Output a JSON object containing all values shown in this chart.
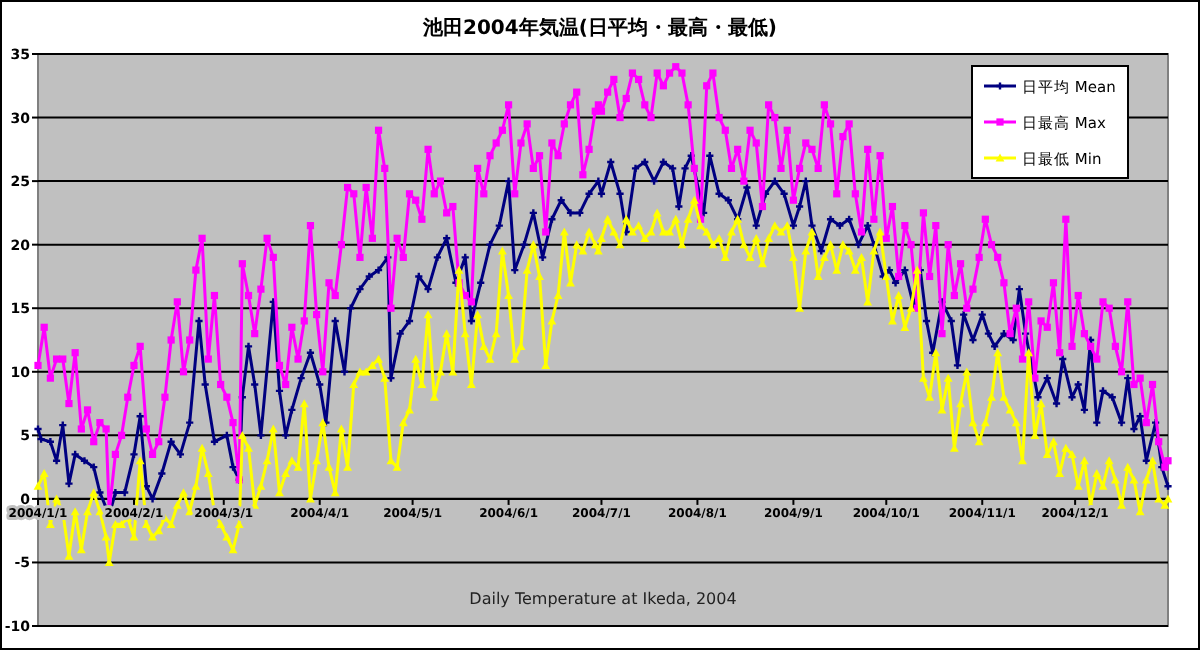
{
  "chart_data": {
    "type": "line",
    "title": "池田2004年気温(日平均・最高・最低)",
    "annotations": [
      "Daily Temperature at Ikeda, 2004"
    ],
    "xlim": [
      "2004-01-01",
      "2004-12-31"
    ],
    "xticks": [
      {
        "value": "2004-01-01",
        "label": "2004/1/1"
      },
      {
        "value": "2004-02-01",
        "label": "2004/2/1"
      },
      {
        "value": "2004-03-01",
        "label": "2004/3/1"
      },
      {
        "value": "2004-04-01",
        "label": "2004/4/1"
      },
      {
        "value": "2004-05-01",
        "label": "2004/5/1"
      },
      {
        "value": "2004-06-01",
        "label": "2004/6/1"
      },
      {
        "value": "2004-07-01",
        "label": "2004/7/1"
      },
      {
        "value": "2004-08-01",
        "label": "2004/8/1"
      },
      {
        "value": "2004-09-01",
        "label": "2004/9/1"
      },
      {
        "value": "2004-10-01",
        "label": "2004/10/1"
      },
      {
        "value": "2004-11-01",
        "label": "2004/11/1"
      },
      {
        "value": "2004-12-01",
        "label": "2004/12/1"
      }
    ],
    "ylim": [
      -10,
      35
    ],
    "yticks": [
      -10,
      -5,
      0,
      5,
      10,
      15,
      20,
      25,
      30,
      35
    ],
    "grid": "y",
    "legend": "top right",
    "line_style": "solid",
    "x": [
      "2004-01-01",
      "2004-01-03",
      "2004-01-05",
      "2004-01-07",
      "2004-01-09",
      "2004-01-11",
      "2004-01-13",
      "2004-01-15",
      "2004-01-17",
      "2004-01-19",
      "2004-01-21",
      "2004-01-23",
      "2004-01-24",
      "2004-01-26",
      "2004-01-28",
      "2004-01-30",
      "2004-02-01",
      "2004-02-03",
      "2004-02-05",
      "2004-02-07",
      "2004-02-09",
      "2004-02-11",
      "2004-02-13",
      "2004-02-15",
      "2004-02-17",
      "2004-02-19",
      "2004-02-21",
      "2004-02-23",
      "2004-02-25",
      "2004-02-27",
      "2004-02-29",
      "2004-03-02",
      "2004-03-04",
      "2004-03-06",
      "2004-03-07",
      "2004-03-09",
      "2004-03-11",
      "2004-03-13",
      "2004-03-15",
      "2004-03-17",
      "2004-03-19",
      "2004-03-21",
      "2004-03-23",
      "2004-03-25",
      "2004-03-27",
      "2004-03-29",
      "2004-03-31",
      "2004-04-02",
      "2004-04-04",
      "2004-04-06",
      "2004-04-08",
      "2004-04-10",
      "2004-04-12",
      "2004-04-14",
      "2004-04-16",
      "2004-04-18",
      "2004-04-20",
      "2004-04-22",
      "2004-04-24",
      "2004-04-26",
      "2004-04-28",
      "2004-04-30",
      "2004-05-02",
      "2004-05-04",
      "2004-05-06",
      "2004-05-08",
      "2004-05-10",
      "2004-05-12",
      "2004-05-14",
      "2004-05-16",
      "2004-05-18",
      "2004-05-20",
      "2004-05-22",
      "2004-05-24",
      "2004-05-26",
      "2004-05-28",
      "2004-05-30",
      "2004-06-01",
      "2004-06-03",
      "2004-06-05",
      "2004-06-07",
      "2004-06-09",
      "2004-06-11",
      "2004-06-13",
      "2004-06-15",
      "2004-06-17",
      "2004-06-19",
      "2004-06-21",
      "2004-06-23",
      "2004-06-25",
      "2004-06-27",
      "2004-06-29",
      "2004-06-30",
      "2004-07-01",
      "2004-07-03",
      "2004-07-05",
      "2004-07-07",
      "2004-07-09",
      "2004-07-11",
      "2004-07-13",
      "2004-07-15",
      "2004-07-17",
      "2004-07-19",
      "2004-07-21",
      "2004-07-23",
      "2004-07-25",
      "2004-07-27",
      "2004-07-29",
      "2004-07-31",
      "2004-08-02",
      "2004-08-04",
      "2004-08-06",
      "2004-08-08",
      "2004-08-10",
      "2004-08-12",
      "2004-08-14",
      "2004-08-16",
      "2004-08-18",
      "2004-08-20",
      "2004-08-22",
      "2004-08-24",
      "2004-08-26",
      "2004-08-28",
      "2004-08-30",
      "2004-09-01",
      "2004-09-03",
      "2004-09-05",
      "2004-09-07",
      "2004-09-09",
      "2004-09-11",
      "2004-09-13",
      "2004-09-15",
      "2004-09-17",
      "2004-09-19",
      "2004-09-21",
      "2004-09-23",
      "2004-09-25",
      "2004-09-27",
      "2004-09-29",
      "2004-10-01",
      "2004-10-03",
      "2004-10-05",
      "2004-10-07",
      "2004-10-09",
      "2004-10-11",
      "2004-10-13",
      "2004-10-15",
      "2004-10-17",
      "2004-10-19",
      "2004-10-21",
      "2004-10-23",
      "2004-10-25",
      "2004-10-27",
      "2004-10-29",
      "2004-10-31",
      "2004-11-02",
      "2004-11-04",
      "2004-11-06",
      "2004-11-08",
      "2004-11-10",
      "2004-11-12",
      "2004-11-14",
      "2004-11-16",
      "2004-11-18",
      "2004-11-20",
      "2004-11-22",
      "2004-11-24",
      "2004-11-26",
      "2004-11-28",
      "2004-11-30",
      "2004-12-02",
      "2004-12-04",
      "2004-12-06",
      "2004-12-08",
      "2004-12-10",
      "2004-12-12",
      "2004-12-14",
      "2004-12-16",
      "2004-12-18",
      "2004-12-20",
      "2004-12-22",
      "2004-12-24",
      "2004-12-26",
      "2004-12-28",
      "2004-12-30",
      "2004-12-31"
    ],
    "series": [
      {
        "name": "日平均 Mean",
        "color": "#000080",
        "marker": "cross",
        "x": [
          "2004-01-01",
          "2004-01-02",
          "2004-01-05",
          "2004-01-07",
          "2004-01-09",
          "2004-01-11",
          "2004-01-13",
          "2004-01-16",
          "2004-01-19",
          "2004-01-21",
          "2004-01-24",
          "2004-01-26",
          "2004-01-29",
          "2004-02-01",
          "2004-02-03",
          "2004-02-05",
          "2004-02-07",
          "2004-02-10",
          "2004-02-13",
          "2004-02-16",
          "2004-02-19",
          "2004-02-22",
          "2004-02-24",
          "2004-02-27",
          "2004-03-02",
          "2004-03-04",
          "2004-03-06",
          "2004-03-07",
          "2004-03-09",
          "2004-03-11",
          "2004-03-13",
          "2004-03-17",
          "2004-03-19",
          "2004-03-21",
          "2004-03-23",
          "2004-03-26",
          "2004-03-29",
          "2004-04-01",
          "2004-04-03",
          "2004-04-06",
          "2004-04-09",
          "2004-04-11",
          "2004-04-14",
          "2004-04-17",
          "2004-04-20",
          "2004-04-23",
          "2004-04-24",
          "2004-04-27",
          "2004-04-30",
          "2004-05-03",
          "2004-05-06",
          "2004-05-09",
          "2004-05-12",
          "2004-05-15",
          "2004-05-18",
          "2004-05-20",
          "2004-05-23",
          "2004-05-26",
          "2004-05-29",
          "2004-06-01",
          "2004-06-03",
          "2004-06-06",
          "2004-06-09",
          "2004-06-12",
          "2004-06-15",
          "2004-06-18",
          "2004-06-21",
          "2004-06-24",
          "2004-06-27",
          "2004-06-30",
          "2004-07-01",
          "2004-07-04",
          "2004-07-07",
          "2004-07-09",
          "2004-07-12",
          "2004-07-15",
          "2004-07-18",
          "2004-07-21",
          "2004-07-24",
          "2004-07-26",
          "2004-07-28",
          "2004-07-30",
          "2004-08-03",
          "2004-08-05",
          "2004-08-08",
          "2004-08-11",
          "2004-08-14",
          "2004-08-17",
          "2004-08-20",
          "2004-08-23",
          "2004-08-26",
          "2004-08-29",
          "2004-09-01",
          "2004-09-03",
          "2004-09-05",
          "2004-09-07",
          "2004-09-10",
          "2004-09-13",
          "2004-09-16",
          "2004-09-19",
          "2004-09-22",
          "2004-09-25",
          "2004-09-27",
          "2004-09-30",
          "2004-10-02",
          "2004-10-04",
          "2004-10-07",
          "2004-10-10",
          "2004-10-12",
          "2004-10-14",
          "2004-10-16",
          "2004-10-19",
          "2004-10-22",
          "2004-10-24",
          "2004-10-26",
          "2004-10-29",
          "2004-11-01",
          "2004-11-03",
          "2004-11-05",
          "2004-11-08",
          "2004-11-11",
          "2004-11-13",
          "2004-11-15",
          "2004-11-17",
          "2004-11-19",
          "2004-11-22",
          "2004-11-25",
          "2004-11-27",
          "2004-11-30",
          "2004-12-02",
          "2004-12-04",
          "2004-12-06",
          "2004-12-08",
          "2004-12-10",
          "2004-12-13",
          "2004-12-16",
          "2004-12-18",
          "2004-12-20",
          "2004-12-22",
          "2004-12-24",
          "2004-12-27",
          "2004-12-29",
          "2004-12-31"
        ],
        "values": [
          5.5,
          4.7,
          4.5,
          3,
          5.8,
          1.2,
          3.5,
          3,
          2.5,
          0.5,
          -1.3,
          0.5,
          0.5,
          3.5,
          6.5,
          1,
          0,
          2,
          4.5,
          3.5,
          6,
          14,
          9,
          4.5,
          5,
          2.5,
          1.5,
          8,
          12,
          9,
          5,
          15.5,
          8.5,
          5,
          7,
          9.5,
          11.5,
          9,
          6,
          14,
          10,
          15,
          16.5,
          17.5,
          18,
          19,
          9.5,
          13,
          14,
          17.5,
          16.5,
          19,
          20.5,
          17,
          19,
          14,
          17,
          20,
          21.5,
          25,
          18,
          20,
          22.5,
          19,
          22,
          23.5,
          22.5,
          22.5,
          24,
          25,
          24,
          26.5,
          24,
          21,
          26,
          26.5,
          25,
          26.5,
          26,
          23,
          26,
          27,
          22.5,
          27,
          24,
          23.5,
          22,
          24.5,
          21.5,
          24,
          25,
          24,
          21.5,
          23,
          25,
          21.5,
          19.5,
          22,
          21.5,
          22,
          20,
          21.5,
          20,
          17.5,
          18,
          17,
          18,
          15,
          18,
          14,
          11.5,
          15.5,
          14,
          10.5,
          14.5,
          12.5,
          14.5,
          13,
          12,
          13,
          12.5,
          16.5,
          13,
          10.5,
          8,
          9.5,
          7.5,
          11,
          8,
          9,
          7,
          12.5,
          6,
          8.5,
          8,
          6,
          9.5,
          5.5,
          6.5,
          3,
          6,
          2.5,
          1
        ]
      },
      {
        "name": "日最高 Max",
        "color": "#ff00ff",
        "marker": "square",
        "values": [
          10.5,
          13.5,
          9.5,
          11,
          11,
          7.5,
          11.5,
          5.5,
          7,
          4.5,
          6,
          5.5,
          -1,
          3.5,
          5,
          8,
          10.5,
          12,
          5.5,
          3.5,
          4.5,
          8,
          12.5,
          15.5,
          10,
          12.5,
          18,
          20.5,
          11,
          16,
          9,
          8,
          6,
          1.5,
          18.5,
          16,
          13,
          16.5,
          20.5,
          19,
          10.5,
          9,
          13.5,
          11,
          14,
          21.5,
          14.5,
          10,
          17,
          16,
          20,
          24.5,
          24,
          19,
          24.5,
          20.5,
          29,
          26,
          15,
          20.5,
          19,
          24,
          23.5,
          22,
          27.5,
          24,
          25,
          22.5,
          23,
          17,
          16,
          15.5,
          26,
          24,
          27,
          28,
          29,
          31,
          24,
          28,
          29.5,
          26,
          27,
          21,
          28,
          27,
          29.5,
          31,
          32,
          25.5,
          27.5,
          30.5,
          31,
          30.5,
          32,
          33,
          30,
          31.5,
          33.5,
          33,
          31,
          30,
          33.5,
          32.5,
          33.5,
          34,
          33.5,
          31,
          26,
          22,
          32.5,
          33.5,
          30,
          29,
          26,
          27.5,
          25,
          29,
          28,
          23,
          31,
          30,
          26,
          29,
          23.5,
          26,
          28,
          27.5,
          26,
          31,
          29.5,
          24,
          28.5,
          29.5,
          24,
          21,
          27.5,
          22,
          27,
          20.5,
          23,
          17.5,
          21.5,
          20,
          15,
          22.5,
          17.5,
          21.5,
          13,
          20,
          16,
          18.5,
          15,
          16.5,
          19,
          22,
          20,
          19,
          17,
          13,
          15,
          11,
          15.5,
          9.5,
          14,
          13.5,
          17,
          11.5,
          22,
          12,
          16,
          13,
          12,
          11,
          15.5,
          15,
          12,
          10,
          15.5,
          9,
          9.5,
          6,
          9,
          4.5,
          2.5,
          3
        ]
      },
      {
        "name": "日最低 Min",
        "color": "#ffff00",
        "marker": "triangle",
        "values": [
          1,
          2,
          -2,
          0,
          -1,
          -4.5,
          -1,
          -4,
          -1,
          0.5,
          -1,
          -3,
          -5,
          -2,
          -2,
          -1.5,
          -3,
          3,
          -2,
          -3,
          -2.5,
          -1.5,
          -2,
          -0.5,
          0.5,
          -1,
          1,
          4,
          2,
          -1,
          -2,
          -3,
          -4,
          -2,
          5,
          4,
          -0.5,
          1,
          3,
          5.5,
          0.5,
          2,
          3,
          2.5,
          7.5,
          0,
          3,
          6,
          2.5,
          0.5,
          5.5,
          2.5,
          9,
          10,
          10,
          10.5,
          11,
          9.5,
          3,
          2.5,
          6,
          7,
          11,
          9,
          14.5,
          8,
          10,
          13,
          10,
          18,
          13,
          9,
          14.5,
          12,
          11,
          13,
          19.5,
          16,
          11,
          12,
          18,
          20,
          17.5,
          10.5,
          14,
          16,
          21,
          17,
          20,
          19.5,
          21,
          20,
          19.5,
          20.5,
          22,
          21,
          20,
          22,
          21,
          21.5,
          20.5,
          21,
          22.5,
          21,
          21,
          22,
          20,
          22,
          23.5,
          21.5,
          21,
          20,
          20.5,
          19,
          21,
          22,
          20,
          19,
          20.5,
          18.5,
          20.5,
          21.5,
          21,
          21.5,
          19,
          15,
          19.5,
          21,
          17.5,
          19,
          20,
          18,
          20,
          19.5,
          18,
          19,
          15.5,
          19.5,
          21,
          17.5,
          14,
          16,
          13.5,
          15,
          18,
          9.5,
          8,
          11.5,
          7,
          9.5,
          4,
          7.5,
          10,
          6,
          4.5,
          6,
          8,
          11.5,
          8,
          7,
          6,
          3,
          11.5,
          5,
          7.5,
          3.5,
          4.5,
          2,
          4,
          3.5,
          1,
          3,
          -0.5,
          2,
          1,
          3,
          1.5,
          -0.5,
          2.5,
          1.5,
          -1,
          1.5,
          3,
          0,
          -0.5,
          0
        ]
      }
    ]
  }
}
